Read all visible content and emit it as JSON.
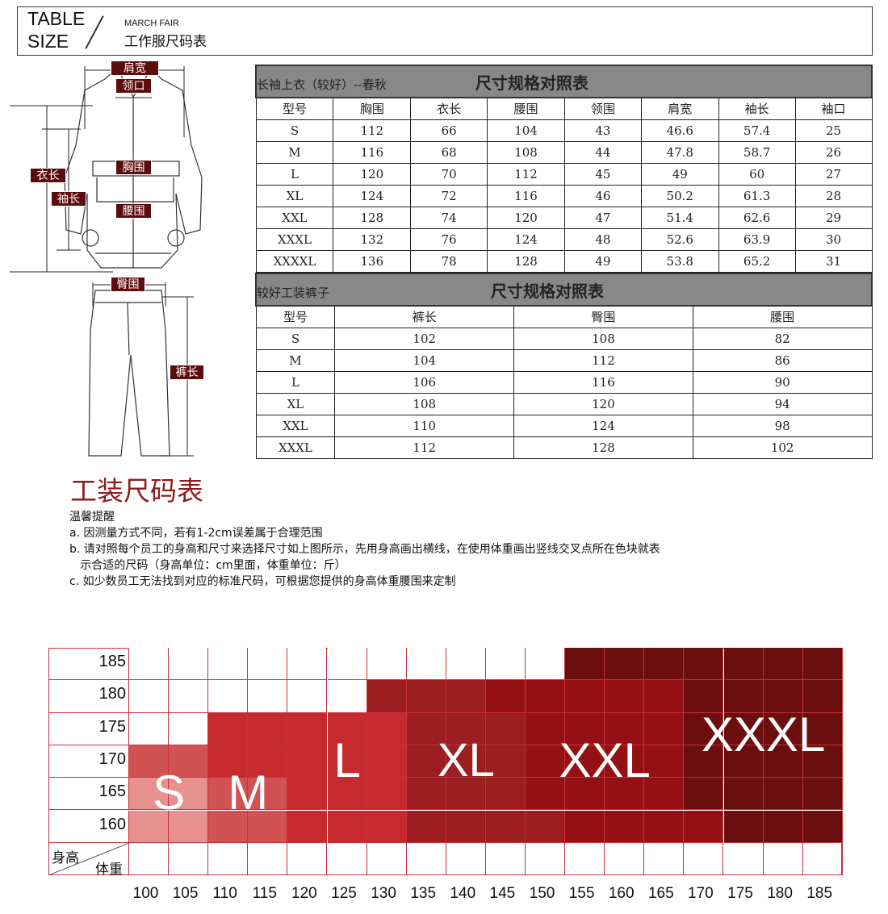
{
  "header": {
    "title_en": "TABLE SIZE",
    "line1": "TABLE",
    "line2": "SIZE",
    "brand": "MARCH FAIR",
    "title_cn": "工作服尺码表"
  },
  "diagram": {
    "labels": {
      "shoulder": "肩宽",
      "collar": "领口",
      "length": "衣长",
      "sleeve": "袖长",
      "chest": "胸围",
      "waist": "腰围",
      "hip": "臀围",
      "pants_length": "裤长"
    }
  },
  "shirt_table": {
    "name": "长袖上衣（较好）--春秋",
    "title": "尺寸规格对照表",
    "columns": [
      "型号",
      "胸围",
      "衣长",
      "腰围",
      "领围",
      "肩宽",
      "袖长",
      "袖口"
    ],
    "rows": [
      [
        "S",
        "112",
        "66",
        "104",
        "43",
        "46.6",
        "57.4",
        "25"
      ],
      [
        "M",
        "116",
        "68",
        "108",
        "44",
        "47.8",
        "58.7",
        "26"
      ],
      [
        "L",
        "120",
        "70",
        "112",
        "45",
        "49",
        "60",
        "27"
      ],
      [
        "XL",
        "124",
        "72",
        "116",
        "46",
        "50.2",
        "61.3",
        "28"
      ],
      [
        "XXL",
        "128",
        "74",
        "120",
        "47",
        "51.4",
        "62.6",
        "29"
      ],
      [
        "XXXL",
        "132",
        "76",
        "124",
        "48",
        "52.6",
        "63.9",
        "30"
      ],
      [
        "XXXXL",
        "136",
        "78",
        "128",
        "49",
        "53.8",
        "65.2",
        "31"
      ]
    ]
  },
  "pants_table": {
    "name": "较好工装裤子",
    "title": "尺寸规格对照表",
    "columns": [
      "型号",
      "裤长",
      "臀围",
      "腰围"
    ],
    "rows": [
      [
        "S",
        "102",
        "108",
        "82"
      ],
      [
        "M",
        "104",
        "112",
        "86"
      ],
      [
        "L",
        "106",
        "116",
        "90"
      ],
      [
        "XL",
        "108",
        "120",
        "94"
      ],
      [
        "XXL",
        "110",
        "124",
        "98"
      ],
      [
        "XXXL",
        "112",
        "128",
        "102"
      ]
    ]
  },
  "notes": {
    "title": "工装尺码表",
    "subtitle": "温馨提醒",
    "items": [
      "a. 因测量方式不同，若有1-2cm误差属于合理范围",
      "b. 请对照每个员工的身高和尺寸来选择尺寸如上图所示，先用身高画出横线，在使用体重画出竖线交叉点所在色块就表",
      "   示合适的尺码（身高单位：cm里面，体重单位：斤）",
      "c. 如少数员工无法找到对应的标准尺码，可根据您提供的身高体重腰围来定制"
    ]
  },
  "chart_data": {
    "type": "heatmap",
    "ylabel": "身高",
    "xlabel": "体重",
    "y": [
      "185",
      "180",
      "175",
      "170",
      "165",
      "160"
    ],
    "x": [
      "100",
      "105",
      "110",
      "115",
      "120",
      "125",
      "130",
      "135",
      "140",
      "145",
      "150",
      "155",
      "160",
      "165",
      "170",
      "175",
      "180",
      "185"
    ],
    "sizes": {
      "S": "#e79090",
      "M": "#d05252",
      "L": "#c62a2e",
      "XL": "#9c1e20",
      "XXL": "#951015",
      "XXXL": "#6a0e0e"
    },
    "grid": [
      [
        "",
        "",
        "",
        "",
        "",
        "",
        "",
        "",
        "",
        "",
        "",
        "XXXL",
        "XXXL",
        "XXXL",
        "XXXL",
        "XXXL",
        "XXXL",
        "XXXL"
      ],
      [
        "",
        "",
        "",
        "",
        "",
        "",
        "XL",
        "XL",
        "XL",
        "XXL",
        "XXL",
        "XXL",
        "XXL",
        "XXL",
        "XXXL",
        "XXXL",
        "XXXL",
        "XXXL"
      ],
      [
        "",
        "",
        "L",
        "L",
        "L",
        "L",
        "L",
        "XL",
        "XL",
        "XL",
        "XXL",
        "XXL",
        "XXL",
        "XXL",
        "XXXL",
        "XXXL",
        "XXXL",
        "XXXL"
      ],
      [
        "M",
        "M",
        "L",
        "L",
        "L",
        "L",
        "L",
        "XL",
        "XL",
        "XL",
        "XXL",
        "XXL",
        "XXL",
        "XXL",
        "XXXL",
        "XXXL",
        "XXXL",
        "XXXL"
      ],
      [
        "S",
        "S",
        "M",
        "M",
        "L",
        "L",
        "L",
        "XL",
        "XL",
        "XL",
        "XXL",
        "XXL",
        "XXL",
        "XXL",
        "XXXL",
        "XXXL",
        "XXXL",
        "XXXL"
      ],
      [
        "S",
        "S",
        "M",
        "M",
        "L",
        "L",
        "L",
        "XL",
        "XL",
        "XL",
        "XL",
        "XXL",
        "XXL",
        "XXL",
        "XXL",
        "XXXL",
        "XXXL",
        "XXXL"
      ]
    ],
    "size_labels": [
      "S",
      "M",
      "L",
      "XL",
      "XXL",
      "XXXL"
    ]
  }
}
